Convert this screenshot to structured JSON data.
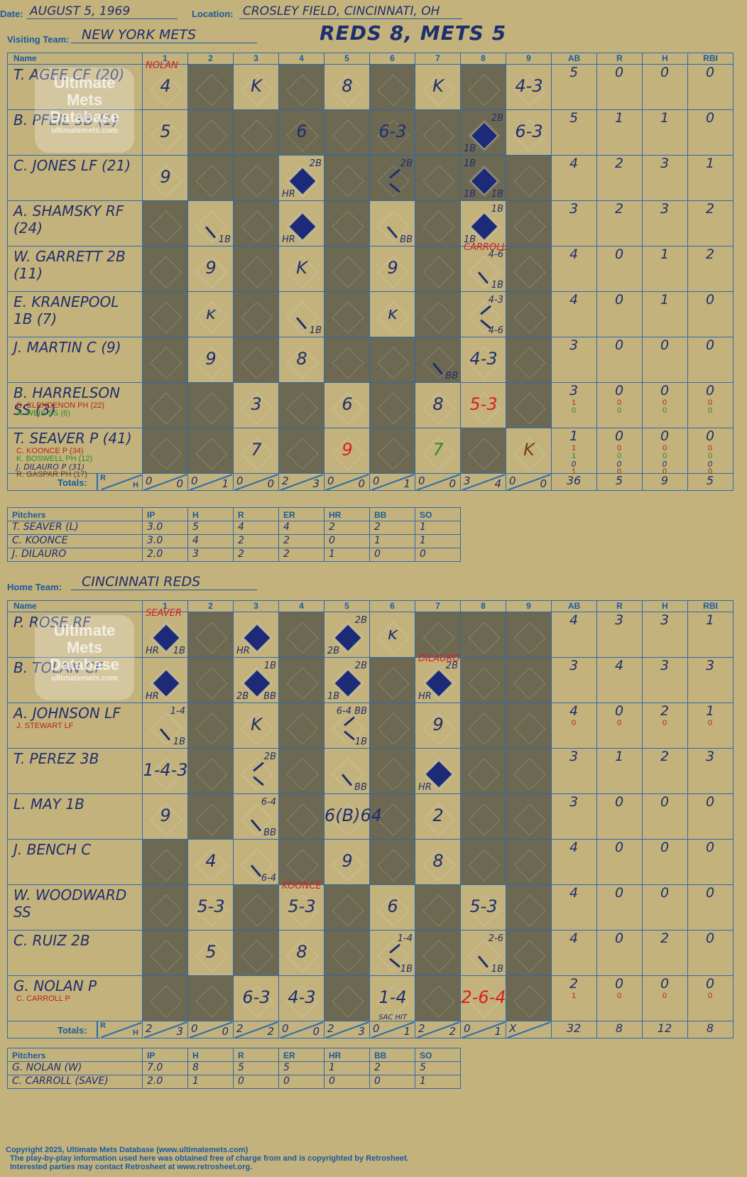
{
  "header": {
    "date_label": "Date:",
    "date": "AUGUST 5, 1969",
    "location_label": "Location:",
    "location": "CROSLEY FIELD, CINCINNATI, OH",
    "visiting_label": "Visiting Team:",
    "visiting_team": "NEW YORK METS",
    "home_label": "Home Team:",
    "home_team": "CINCINNATI REDS",
    "result": "REDS 8, METS 5"
  },
  "columns": {
    "name": "Name",
    "innings": [
      "1",
      "2",
      "3",
      "4",
      "5",
      "6",
      "7",
      "8",
      "9"
    ],
    "stats": [
      "AB",
      "R",
      "H",
      "RBI"
    ],
    "totals_label": "Totals:",
    "r_label": "R",
    "h_label": "H"
  },
  "watermark": [
    "Ultimate",
    "Mets",
    "Database",
    "ultimatemets.com"
  ],
  "visitors": {
    "rows": [
      {
        "name": "T. AGEE CF (20)",
        "subs": [],
        "stats": [
          "5",
          "0",
          "0",
          "0"
        ],
        "substats": []
      },
      {
        "name": "B. PFEIL 3B (1)",
        "subs": [],
        "stats": [
          "5",
          "1",
          "1",
          "0"
        ],
        "substats": []
      },
      {
        "name": "C. JONES LF (21)",
        "subs": [],
        "stats": [
          "4",
          "2",
          "3",
          "1"
        ],
        "substats": []
      },
      {
        "name": "A. SHAMSKY RF (24)",
        "subs": [],
        "stats": [
          "3",
          "2",
          "3",
          "2"
        ],
        "substats": []
      },
      {
        "name": "W. GARRETT 2B (11)",
        "subs": [],
        "stats": [
          "4",
          "0",
          "1",
          "2"
        ],
        "substats": []
      },
      {
        "name": "E. KRANEPOOL 1B (7)",
        "subs": [],
        "stats": [
          "4",
          "0",
          "1",
          "0"
        ],
        "substats": []
      },
      {
        "name": "J. MARTIN C (9)",
        "subs": [],
        "stats": [
          "3",
          "0",
          "0",
          "0"
        ],
        "substats": []
      },
      {
        "name": "B. HARRELSON SS (3)",
        "subs": [
          {
            "t": "D. CLENDENON PH (22)",
            "c": "redsm"
          },
          {
            "t": "A. WEIS SS (6)",
            "c": "grn"
          }
        ],
        "stats": [
          "3",
          "0",
          "0",
          "0"
        ],
        "substats": [
          [
            "1",
            "0",
            "0",
            "0"
          ],
          [
            "0",
            "0",
            "0",
            "0"
          ]
        ]
      },
      {
        "name": "T. SEAVER P (41)",
        "subs": [
          {
            "t": "C. KOONCE P (34)",
            "c": "redsm"
          },
          {
            "t": "K. BOSWELL PH (12)",
            "c": "grn"
          },
          {
            "t": "J. DILAURO P (31)",
            "c": "hand"
          },
          {
            "t": "R. GASPAR PH (17)",
            "c": "brn"
          }
        ],
        "stats": [
          "1",
          "0",
          "0",
          "0"
        ],
        "substats": [
          [
            "1",
            "0",
            "0",
            "0"
          ],
          [
            "1",
            "0",
            "0",
            "0"
          ],
          [
            "0",
            "0",
            "0",
            "0"
          ],
          [
            "1",
            "0",
            "0",
            "0"
          ]
        ]
      }
    ],
    "totals_innings": [
      [
        "0",
        "0"
      ],
      [
        "0",
        "1"
      ],
      [
        "0",
        "0"
      ],
      [
        "2",
        "3"
      ],
      [
        "0",
        "0"
      ],
      [
        "0",
        "1"
      ],
      [
        "0",
        "0"
      ],
      [
        "3",
        "4"
      ],
      [
        "0",
        "0"
      ]
    ],
    "totals_stats": [
      "36",
      "5",
      "9",
      "5"
    ],
    "plays": [
      {
        "r": 0,
        "c": 0,
        "t": "4",
        "note": "NOLAN",
        "noteC": "red"
      },
      {
        "r": 0,
        "c": 2,
        "t": "K"
      },
      {
        "r": 0,
        "c": 4,
        "t": "8"
      },
      {
        "r": 0,
        "c": 6,
        "t": "K"
      },
      {
        "r": 0,
        "c": 8,
        "t": "4-3"
      },
      {
        "r": 1,
        "c": 0,
        "t": "5"
      },
      {
        "r": 1,
        "c": 3,
        "t": "6"
      },
      {
        "r": 1,
        "c": 5,
        "t": "6-3"
      },
      {
        "r": 1,
        "c": 7,
        "f": true,
        "tr": "2B",
        "bl": "1B"
      },
      {
        "r": 1,
        "c": 8,
        "t": "6-3"
      },
      {
        "r": 2,
        "c": 0,
        "t": "9"
      },
      {
        "r": 2,
        "c": 3,
        "f": true,
        "tr": "2B",
        "bl": "HR"
      },
      {
        "r": 2,
        "c": 5,
        "tr": "2B",
        "path": true
      },
      {
        "r": 2,
        "c": 7,
        "f": true,
        "tl": "1B",
        "bl": "1B",
        "br": "1B"
      },
      {
        "r": 3,
        "c": 1,
        "br": "1B",
        "slash": true
      },
      {
        "r": 3,
        "c": 3,
        "f": true,
        "bl": "HR"
      },
      {
        "r": 3,
        "c": 5,
        "br": "BB",
        "slash": true
      },
      {
        "r": 3,
        "c": 7,
        "f": true,
        "tr": "1B",
        "bl": "1B"
      },
      {
        "r": 4,
        "c": 1,
        "t": "9"
      },
      {
        "r": 4,
        "c": 3,
        "t": "K"
      },
      {
        "r": 4,
        "c": 5,
        "t": "9"
      },
      {
        "r": 4,
        "c": 7,
        "tr": "4-6",
        "br": "1B",
        "slash": true,
        "note": "CARROLL",
        "noteC": "red"
      },
      {
        "r": 5,
        "c": 1,
        "t": "ᴋ"
      },
      {
        "r": 5,
        "c": 3,
        "br": "1B",
        "slash": true
      },
      {
        "r": 5,
        "c": 5,
        "t": "ᴋ"
      },
      {
        "r": 5,
        "c": 7,
        "tr": "4-3",
        "br": "4-6",
        "path": true
      },
      {
        "r": 6,
        "c": 1,
        "t": "9"
      },
      {
        "r": 6,
        "c": 3,
        "t": "8"
      },
      {
        "r": 6,
        "c": 6,
        "br": "BB",
        "slash": true
      },
      {
        "r": 6,
        "c": 7,
        "t": "4-3"
      },
      {
        "r": 7,
        "c": 2,
        "t": "3"
      },
      {
        "r": 7,
        "c": 4,
        "t": "6"
      },
      {
        "r": 7,
        "c": 6,
        "t": "8"
      },
      {
        "r": 7,
        "c": 7,
        "t": "5-3",
        "cls": "red"
      },
      {
        "r": 8,
        "c": 2,
        "t": "7"
      },
      {
        "r": 8,
        "c": 4,
        "t": "9",
        "cls": "red"
      },
      {
        "r": 8,
        "c": 6,
        "t": "7",
        "cls": "grn"
      },
      {
        "r": 8,
        "c": 8,
        "t": "K",
        "cls": "brn"
      }
    ],
    "shade": [
      [
        1,
        3,
        5,
        7
      ],
      [
        1,
        2,
        3,
        4,
        5,
        6,
        7
      ],
      [
        1,
        2,
        4,
        5,
        6,
        7,
        8
      ],
      [
        0,
        2,
        4,
        6,
        8
      ],
      [
        0,
        2,
        4,
        6,
        8
      ],
      [
        0,
        2,
        4,
        6,
        8
      ],
      [
        0,
        2,
        4,
        5,
        6,
        8
      ],
      [
        0,
        1,
        3,
        5,
        8
      ],
      [
        0,
        1,
        3,
        5,
        7
      ]
    ],
    "pitchers_header": [
      "Pitchers",
      "IP",
      "H",
      "R",
      "ER",
      "HR",
      "BB",
      "SO"
    ],
    "pitchers": [
      [
        "T. SEAVER (L)",
        "3.0",
        "5",
        "4",
        "4",
        "2",
        "2",
        "1"
      ],
      [
        "C. KOONCE",
        "3.0",
        "4",
        "2",
        "2",
        "0",
        "1",
        "1"
      ],
      [
        "J. DILAURO",
        "2.0",
        "3",
        "2",
        "2",
        "1",
        "0",
        "0"
      ]
    ]
  },
  "home": {
    "rows": [
      {
        "name": "P. ROSE RF",
        "subs": [],
        "stats": [
          "4",
          "3",
          "3",
          "1"
        ],
        "substats": []
      },
      {
        "name": "B. TOLAN CF",
        "subs": [],
        "stats": [
          "3",
          "4",
          "3",
          "3"
        ],
        "substats": []
      },
      {
        "name": "A. JOHNSON LF",
        "subs": [
          {
            "t": "J. STEWART LF",
            "c": "redsm"
          }
        ],
        "stats": [
          "4",
          "0",
          "2",
          "1"
        ],
        "substats": [
          [
            "0",
            "0",
            "0",
            "0"
          ]
        ]
      },
      {
        "name": "T. PEREZ 3B",
        "subs": [],
        "stats": [
          "3",
          "1",
          "2",
          "3"
        ],
        "substats": []
      },
      {
        "name": "L. MAY 1B",
        "subs": [],
        "stats": [
          "3",
          "0",
          "0",
          "0"
        ],
        "substats": []
      },
      {
        "name": "J. BENCH C",
        "subs": [],
        "stats": [
          "4",
          "0",
          "0",
          "0"
        ],
        "substats": []
      },
      {
        "name": "W. WOODWARD SS",
        "subs": [],
        "stats": [
          "4",
          "0",
          "0",
          "0"
        ],
        "substats": []
      },
      {
        "name": "C. RUIZ 2B",
        "subs": [],
        "stats": [
          "4",
          "0",
          "2",
          "0"
        ],
        "substats": []
      },
      {
        "name": "G. NOLAN P",
        "subs": [
          {
            "t": "C. CARROLL P",
            "c": "redsm"
          }
        ],
        "stats": [
          "2",
          "0",
          "0",
          "0"
        ],
        "substats": [
          [
            "1",
            "0",
            "0",
            "0"
          ]
        ]
      }
    ],
    "totals_innings": [
      [
        "2",
        "3"
      ],
      [
        "0",
        "0"
      ],
      [
        "2",
        "2"
      ],
      [
        "0",
        "0"
      ],
      [
        "2",
        "3"
      ],
      [
        "0",
        "1"
      ],
      [
        "2",
        "2"
      ],
      [
        "0",
        "1"
      ],
      [
        "X",
        ""
      ]
    ],
    "totals_stats": [
      "32",
      "8",
      "12",
      "8"
    ],
    "plays": [
      {
        "r": 0,
        "c": 0,
        "f": true,
        "bl": "HR",
        "br": "1B",
        "note": "SEAVER",
        "noteC": "red"
      },
      {
        "r": 0,
        "c": 2,
        "f": true,
        "bl": "HR"
      },
      {
        "r": 0,
        "c": 4,
        "f": true,
        "tr": "2B",
        "bl": "2B"
      },
      {
        "r": 0,
        "c": 5,
        "t": "ᴋ"
      },
      {
        "r": 1,
        "c": 0,
        "f": true,
        "bl": "HR"
      },
      {
        "r": 1,
        "c": 2,
        "f": true,
        "tr": "1B",
        "bl": "2B",
        "br": "BB"
      },
      {
        "r": 1,
        "c": 4,
        "f": true,
        "tr": "2B",
        "bl": "1B"
      },
      {
        "r": 1,
        "c": 6,
        "f": true,
        "tr": "2B",
        "bl": "HR",
        "note": "DILAURO",
        "noteC": "red"
      },
      {
        "r": 2,
        "c": 0,
        "tr": "1-4",
        "br": "1B",
        "slash": true
      },
      {
        "r": 2,
        "c": 2,
        "t": "K"
      },
      {
        "r": 2,
        "c": 4,
        "tr": "6-4 BB",
        "br": "1B",
        "path": true
      },
      {
        "r": 2,
        "c": 6,
        "t": "9"
      },
      {
        "r": 3,
        "c": 0,
        "t": "1-4-3"
      },
      {
        "r": 3,
        "c": 2,
        "tr": "2B",
        "path": true
      },
      {
        "r": 3,
        "c": 4,
        "br": "BB",
        "slash": true
      },
      {
        "r": 3,
        "c": 6,
        "f": true,
        "bl": "HR"
      },
      {
        "r": 4,
        "c": 0,
        "t": "9"
      },
      {
        "r": 4,
        "c": 2,
        "tr": "6-4",
        "br": "BB",
        "slash": true
      },
      {
        "r": 4,
        "c": 4,
        "t": "6(B)64"
      },
      {
        "r": 4,
        "c": 6,
        "t": "2"
      },
      {
        "r": 5,
        "c": 1,
        "t": "4"
      },
      {
        "r": 5,
        "c": 2,
        "br": "6-4",
        "slash": true
      },
      {
        "r": 5,
        "c": 4,
        "t": "9"
      },
      {
        "r": 5,
        "c": 6,
        "t": "8"
      },
      {
        "r": 6,
        "c": 1,
        "t": "5-3"
      },
      {
        "r": 6,
        "c": 3,
        "t": "5-3",
        "note": "KOONCE",
        "noteC": "red"
      },
      {
        "r": 6,
        "c": 5,
        "t": "6"
      },
      {
        "r": 6,
        "c": 7,
        "t": "5-3"
      },
      {
        "r": 7,
        "c": 1,
        "t": "5"
      },
      {
        "r": 7,
        "c": 3,
        "t": "8"
      },
      {
        "r": 7,
        "c": 5,
        "tr": "1-4",
        "br": "1B",
        "path": true
      },
      {
        "r": 7,
        "c": 7,
        "tr": "2-6",
        "br": "1B",
        "slash": true
      },
      {
        "r": 8,
        "c": 2,
        "t": "6-3"
      },
      {
        "r": 8,
        "c": 3,
        "t": "4-3"
      },
      {
        "r": 8,
        "c": 5,
        "t": "1-4",
        "foot": "SAC HIT"
      },
      {
        "r": 8,
        "c": 7,
        "t": "2-6-4",
        "cls": "red"
      }
    ],
    "shade": [
      [
        1,
        3,
        6,
        7,
        8
      ],
      [
        1,
        3,
        5,
        7,
        8
      ],
      [
        1,
        3,
        5,
        7,
        8
      ],
      [
        1,
        3,
        5,
        7,
        8
      ],
      [
        1,
        3,
        5,
        7,
        8
      ],
      [
        0,
        3,
        5,
        7,
        8
      ],
      [
        0,
        2,
        4,
        6,
        8
      ],
      [
        0,
        2,
        4,
        6,
        8
      ],
      [
        0,
        1,
        4,
        6,
        8
      ]
    ],
    "pitchers_header": [
      "Pitchers",
      "IP",
      "H",
      "R",
      "ER",
      "HR",
      "BB",
      "SO"
    ],
    "pitchers": [
      [
        "G. NOLAN (W)",
        "7.0",
        "8",
        "5",
        "5",
        "1",
        "2",
        "5"
      ],
      [
        "C. CARROLL (SAVE)",
        "2.0",
        "1",
        "0",
        "0",
        "0",
        "0",
        "1"
      ]
    ]
  },
  "footer": [
    "Copyright 2025, Ultimate Mets Database (www.ultimatemets.com)",
    "The play-by-play information used here was obtained free of charge from and is copyrighted by Retrosheet.",
    "Interested parties may contact Retrosheet at www.retrosheet.org."
  ]
}
